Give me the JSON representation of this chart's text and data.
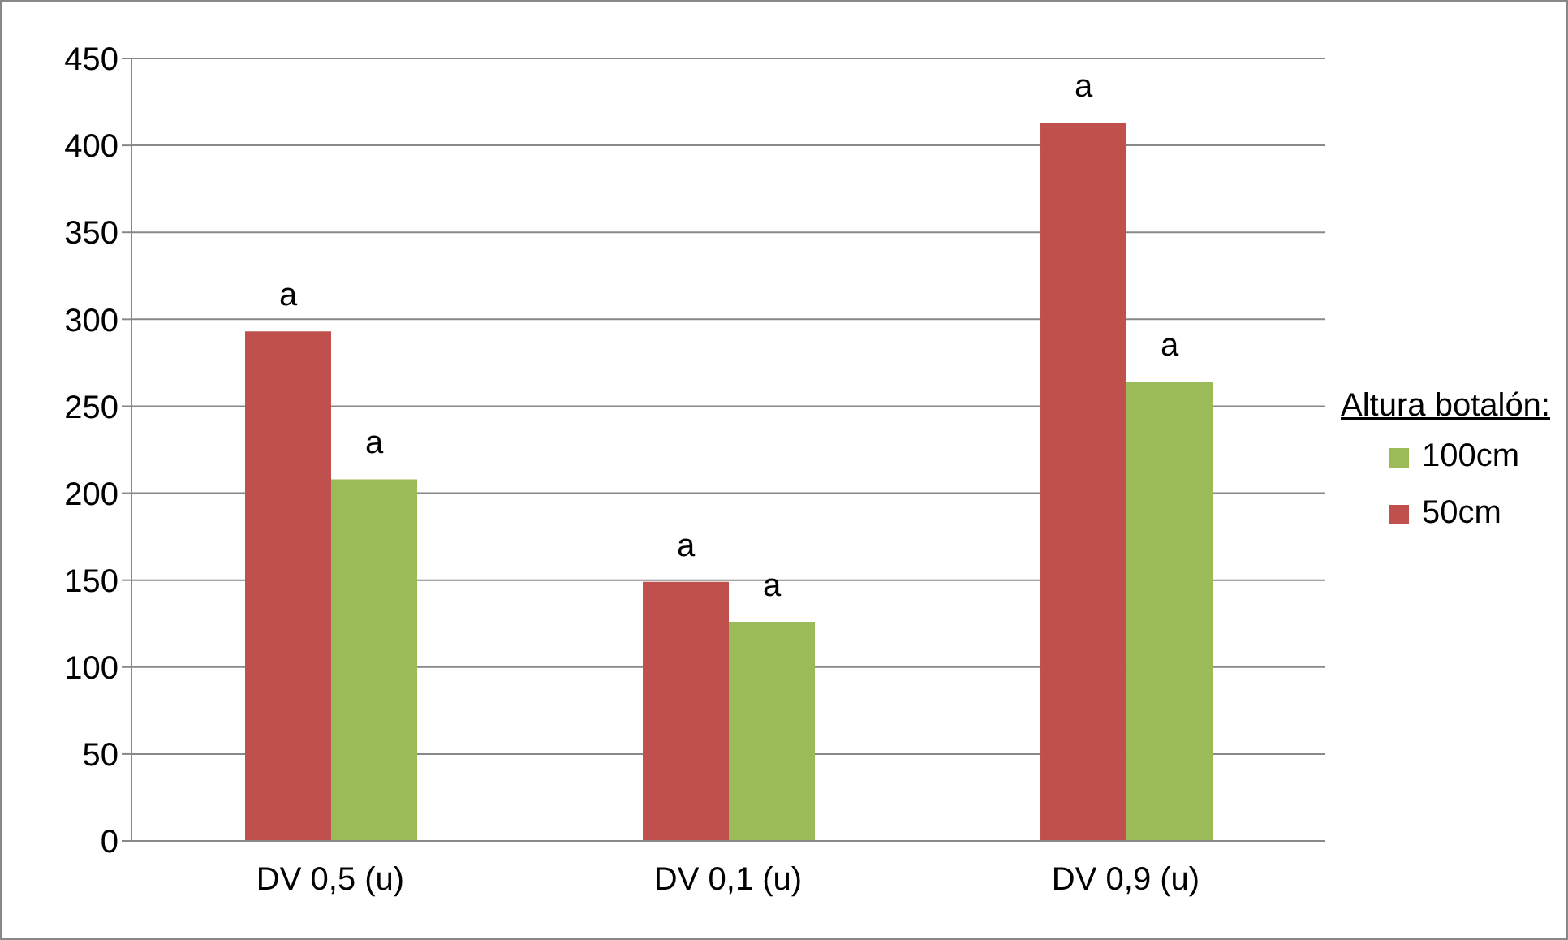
{
  "chart_data": {
    "type": "bar",
    "categories": [
      "DV 0,5 (u)",
      "DV 0,1 (u)",
      "DV 0,9 (u)"
    ],
    "series": [
      {
        "name": "50cm",
        "color": "#c0504d",
        "values": [
          293,
          149,
          413
        ]
      },
      {
        "name": "100cm",
        "color": "#9bbb59",
        "values": [
          208,
          126,
          264
        ]
      }
    ],
    "ylim": [
      0,
      450
    ],
    "yticks": [
      0,
      50,
      100,
      150,
      200,
      250,
      300,
      350,
      400,
      450
    ],
    "grid": "y",
    "legend": "right",
    "legend_title": "Altura botalón:",
    "annotations": [
      {
        "text": "a",
        "x": "DV 0,5 (u)",
        "y": 293
      },
      {
        "text": "a",
        "x": "DV 0,5 (u)",
        "y": 208
      },
      {
        "text": "a",
        "x": "DV 0,1 (u)",
        "y": 149
      },
      {
        "text": "a",
        "x": "DV 0,1 (u)",
        "y": 126
      },
      {
        "text": "a",
        "x": "DV 0,9 (u)",
        "y": 413
      },
      {
        "text": "a",
        "x": "DV 0,9 (u)",
        "y": 264
      }
    ]
  }
}
